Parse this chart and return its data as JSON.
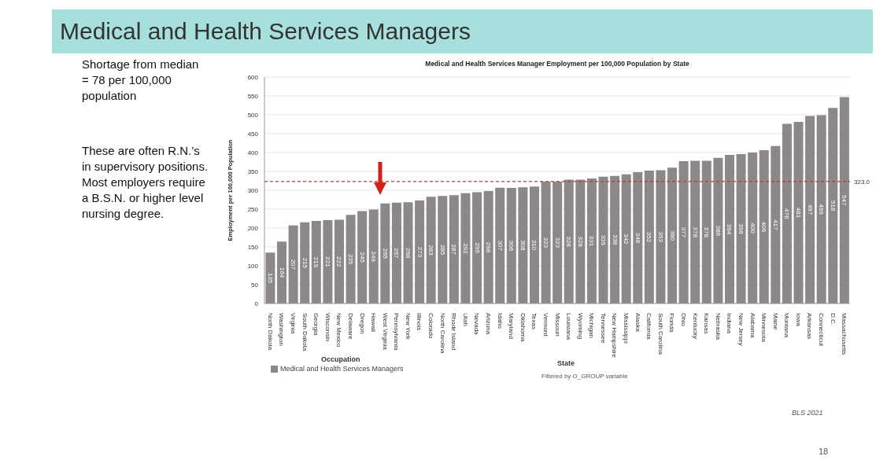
{
  "chart_data": {
    "type": "bar",
    "title": "Medical and Health Services Managers",
    "subtitle": "Medical and Health Services Manager Employment per 100,000 Population by State",
    "xlabel": "State",
    "ylabel": "Employment per 100,000 Population",
    "categories": [
      "North Dakota",
      "Washington",
      "Virginia",
      "South Dakota",
      "Georgia",
      "Wisconsin",
      "New Mexico",
      "Delaware",
      "Oregon",
      "Hawaii",
      "West Virginia",
      "Pennsylvania",
      "New York",
      "Illinois",
      "Colorado",
      "North Carolina",
      "Rhode Island",
      "Utah",
      "Nevada",
      "Arizona",
      "Idaho",
      "Maryland",
      "Oklahoma",
      "Texas",
      "Vermont",
      "Missouri",
      "Louisiana",
      "Wyoming",
      "Michigan",
      "Tennessee",
      "New Hampshire",
      "Mississippi",
      "Alaska",
      "California",
      "South Carolina",
      "Florida",
      "Ohio",
      "Kentucky",
      "Kansas",
      "Nebraska",
      "Indiana",
      "New Jersey",
      "Alabama",
      "Minnesota",
      "Maine",
      "Montana",
      "Iowa",
      "Arkansas",
      "Connecticut",
      "D.C.",
      "Massachusetts"
    ],
    "series": [
      {
        "name": "Medical and Health Services Managers",
        "color": "#8c8888",
        "values": [
          135,
          164,
          207,
          215,
          219,
          221,
          222,
          235,
          245,
          249,
          265,
          267,
          268,
          273,
          283,
          285,
          287,
          292,
          295,
          298,
          307,
          306,
          308,
          310,
          323,
          323,
          328,
          328,
          331,
          336,
          338,
          342,
          348,
          352,
          353,
          360,
          377,
          378,
          378,
          386,
          394,
          396,
          400,
          406,
          417,
          476,
          481,
          497,
          499,
          518,
          547
        ]
      }
    ],
    "ylim": [
      0,
      600
    ],
    "yticks": [
      0,
      50,
      100,
      150,
      200,
      250,
      300,
      350,
      400,
      450,
      500,
      550,
      600
    ],
    "grid": "y",
    "legend": "bottom left",
    "data_labels": true,
    "ref_lines": [
      {
        "axis": "y",
        "value": 323,
        "label": "323.0",
        "color": "#c0392b",
        "line_style": "dashed"
      }
    ],
    "annotations": [
      "Shortage from median = 78 per 100,000 population",
      "These are often R.N.’s in supervisory positions.  Most employers require a B.S.N. or higher level nursing degree.",
      "Occupation",
      "Filtered by O_GROUP variable",
      "BLS 2021",
      "18"
    ]
  }
}
